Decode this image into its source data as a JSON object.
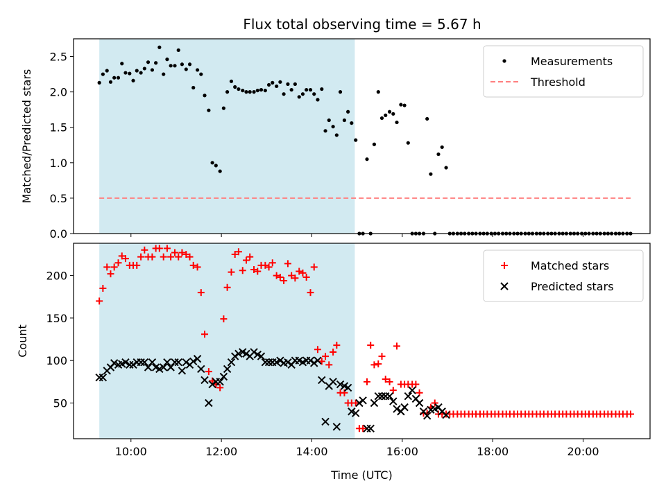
{
  "figure": {
    "title": "Flux total observing time = 5.67 h"
  },
  "colors": {
    "measurements": "#000000",
    "threshold": "#ff7f7f",
    "matched": "#ff0000",
    "predicted": "#000000",
    "observing_window": "#add8e6"
  },
  "chart_data": [
    {
      "type": "scatter",
      "panel": "top",
      "xlabel": "",
      "ylabel": "Matched/Predicted stars",
      "xlim": [
        8.73,
        21.48
      ],
      "ylim": [
        0,
        2.75
      ],
      "yticks": [
        0.0,
        0.5,
        1.0,
        1.5,
        2.0,
        2.5
      ],
      "ytick_labels": [
        "0.0",
        "0.5",
        "1.0",
        "1.5",
        "2.0",
        "2.5"
      ],
      "xticks": [
        10,
        12,
        14,
        16,
        18,
        20
      ],
      "shaded_span": [
        9.3,
        14.95
      ],
      "legend_position": "upper right",
      "threshold": {
        "name": "Threshold",
        "value": 0.5,
        "x": [
          9.3,
          21.05
        ]
      },
      "series": [
        {
          "name": "Measurements",
          "x": [
            9.3,
            9.38,
            9.47,
            9.55,
            9.63,
            9.72,
            9.8,
            9.88,
            9.97,
            10.05,
            10.13,
            10.22,
            10.3,
            10.38,
            10.47,
            10.55,
            10.63,
            10.72,
            10.8,
            10.88,
            10.97,
            11.05,
            11.13,
            11.22,
            11.3,
            11.38,
            11.47,
            11.55,
            11.63,
            11.72,
            11.8,
            11.88,
            11.97,
            12.05,
            12.13,
            12.22,
            12.3,
            12.38,
            12.47,
            12.55,
            12.63,
            12.72,
            12.8,
            12.88,
            12.97,
            13.05,
            13.13,
            13.22,
            13.3,
            13.38,
            13.47,
            13.55,
            13.63,
            13.72,
            13.8,
            13.88,
            13.97,
            14.05,
            14.13,
            14.22,
            14.3,
            14.38,
            14.47,
            14.55,
            14.63,
            14.72,
            14.8,
            14.88,
            14.97,
            15.05,
            15.13,
            15.22,
            15.3,
            15.38,
            15.47,
            15.55,
            15.63,
            15.72,
            15.8,
            15.88,
            15.97,
            16.05,
            16.13,
            16.22,
            16.3,
            16.38,
            16.47,
            16.55,
            16.63,
            16.72,
            16.8,
            16.88,
            16.97,
            17.05,
            17.13,
            17.22,
            17.3,
            17.38,
            17.47,
            17.55,
            17.63,
            17.72,
            17.8,
            17.88,
            17.97,
            18.05,
            18.13,
            18.22,
            18.3,
            18.38,
            18.47,
            18.55,
            18.63,
            18.72,
            18.8,
            18.88,
            18.97,
            19.05,
            19.13,
            19.22,
            19.3,
            19.38,
            19.47,
            19.55,
            19.63,
            19.72,
            19.8,
            19.88,
            19.97,
            20.05,
            20.13,
            20.22,
            20.3,
            20.38,
            20.47,
            20.55,
            20.63,
            20.72,
            20.8,
            20.88,
            20.97,
            21.05
          ],
          "y": [
            2.13,
            2.25,
            2.3,
            2.14,
            2.2,
            2.2,
            2.4,
            2.27,
            2.26,
            2.16,
            2.3,
            2.27,
            2.33,
            2.42,
            2.31,
            2.41,
            2.63,
            2.25,
            2.46,
            2.37,
            2.37,
            2.59,
            2.39,
            2.32,
            2.39,
            2.06,
            2.31,
            2.25,
            1.95,
            1.74,
            1.0,
            0.96,
            0.88,
            1.77,
            2.0,
            2.15,
            2.07,
            2.04,
            2.02,
            2.0,
            2.0,
            2.0,
            2.02,
            2.03,
            2.02,
            2.1,
            2.13,
            2.08,
            2.14,
            1.97,
            2.11,
            2.03,
            2.11,
            1.93,
            1.97,
            2.03,
            2.03,
            1.97,
            1.89,
            2.04,
            1.45,
            1.6,
            1.51,
            1.39,
            2.0,
            1.6,
            1.72,
            1.56,
            1.32,
            0.0,
            0.0,
            1.05,
            0.0,
            1.26,
            2.0,
            1.63,
            1.67,
            1.72,
            1.69,
            1.57,
            1.82,
            1.81,
            1.28,
            0.0,
            0.0,
            0.0,
            0.0,
            1.62,
            0.84,
            0.0,
            1.12,
            1.22,
            0.93,
            0.0,
            0.0,
            0.0,
            0.0,
            0.0,
            0.0,
            0.0,
            0.0,
            0.0,
            0.0,
            0.0,
            0.0,
            0.0,
            0.0,
            0.0,
            0.0,
            0.0,
            0.0,
            0.0,
            0.0,
            0.0,
            0.0,
            0.0,
            0.0,
            0.0,
            0.0,
            0.0,
            0.0,
            0.0,
            0.0,
            0.0,
            0.0,
            0.0,
            0.0,
            0.0,
            0.0,
            0.0,
            0.0,
            0.0,
            0.0,
            0.0,
            0.0,
            0.0,
            0.0,
            0.0,
            0.0,
            0.0,
            0.0,
            0.0
          ]
        }
      ]
    },
    {
      "type": "scatter",
      "panel": "bottom",
      "xlabel": "Time (UTC)",
      "ylabel": "Count",
      "xlim": [
        8.73,
        21.48
      ],
      "ylim": [
        8,
        238
      ],
      "yticks": [
        50,
        100,
        150,
        200
      ],
      "ytick_labels": [
        "50",
        "100",
        "150",
        "200"
      ],
      "xticks": [
        10,
        12,
        14,
        16,
        18,
        20
      ],
      "xtick_labels": [
        "10:00",
        "12:00",
        "14:00",
        "16:00",
        "18:00",
        "20:00"
      ],
      "shaded_span": [
        9.3,
        14.95
      ],
      "legend_position": "upper right",
      "series": [
        {
          "name": "Matched stars",
          "marker": "plus",
          "x": [
            9.3,
            9.38,
            9.47,
            9.55,
            9.63,
            9.72,
            9.8,
            9.88,
            9.97,
            10.05,
            10.13,
            10.22,
            10.3,
            10.38,
            10.47,
            10.55,
            10.63,
            10.72,
            10.8,
            10.88,
            10.97,
            11.05,
            11.13,
            11.22,
            11.3,
            11.38,
            11.47,
            11.55,
            11.63,
            11.72,
            11.8,
            11.88,
            11.97,
            12.05,
            12.13,
            12.22,
            12.3,
            12.38,
            12.47,
            12.55,
            12.63,
            12.72,
            12.8,
            12.88,
            12.97,
            13.05,
            13.13,
            13.22,
            13.3,
            13.38,
            13.47,
            13.55,
            13.63,
            13.72,
            13.8,
            13.88,
            13.97,
            14.05,
            14.13,
            14.22,
            14.3,
            14.38,
            14.47,
            14.55,
            14.63,
            14.72,
            14.8,
            14.88,
            14.97,
            15.05,
            15.13,
            15.22,
            15.3,
            15.38,
            15.47,
            15.55,
            15.63,
            15.72,
            15.8,
            15.88,
            15.97,
            16.05,
            16.13,
            16.22,
            16.3,
            16.38,
            16.47,
            16.55,
            16.63,
            16.72,
            16.8,
            16.88,
            16.97,
            17.05,
            17.13,
            17.22,
            17.3,
            17.38,
            17.47,
            17.55,
            17.63,
            17.72,
            17.8,
            17.88,
            17.97,
            18.05,
            18.13,
            18.22,
            18.3,
            18.38,
            18.47,
            18.55,
            18.63,
            18.72,
            18.8,
            18.88,
            18.97,
            19.05,
            19.13,
            19.22,
            19.3,
            19.38,
            19.47,
            19.55,
            19.63,
            19.72,
            19.8,
            19.88,
            19.97,
            20.05,
            20.13,
            20.22,
            20.3,
            20.38,
            20.47,
            20.55,
            20.63,
            20.72,
            20.8,
            20.88,
            20.97,
            21.05
          ],
          "y": [
            170,
            185,
            210,
            202,
            210,
            215,
            223,
            220,
            212,
            212,
            212,
            222,
            230,
            222,
            222,
            232,
            232,
            222,
            232,
            222,
            227,
            222,
            227,
            225,
            222,
            212,
            210,
            180,
            131,
            87,
            76,
            72,
            68,
            149,
            186,
            204,
            225,
            228,
            206,
            218,
            222,
            207,
            205,
            212,
            212,
            210,
            215,
            200,
            198,
            194,
            214,
            200,
            197,
            205,
            203,
            198,
            180,
            210,
            113,
            99,
            105,
            95,
            110,
            118,
            62,
            62,
            50,
            50,
            50,
            20,
            20,
            75,
            118,
            95,
            96,
            105,
            78,
            75,
            65,
            117,
            72,
            72,
            72,
            72,
            72,
            62,
            38,
            38,
            45,
            50,
            37,
            37,
            37,
            37,
            37,
            37,
            37,
            37,
            37,
            37,
            37,
            37,
            37,
            37,
            37,
            37,
            37,
            37,
            37,
            37,
            37,
            37,
            37,
            37,
            37,
            37,
            37,
            37,
            37,
            37,
            37,
            37,
            37,
            37,
            37,
            37,
            37,
            37,
            37,
            37,
            37,
            37,
            37,
            37,
            37,
            37,
            37,
            37,
            37,
            37,
            37,
            37
          ]
        },
        {
          "name": "Predicted stars",
          "marker": "x",
          "x": [
            9.3,
            9.38,
            9.47,
            9.55,
            9.63,
            9.72,
            9.8,
            9.88,
            9.97,
            10.05,
            10.13,
            10.22,
            10.3,
            10.38,
            10.47,
            10.55,
            10.63,
            10.72,
            10.8,
            10.88,
            10.97,
            11.05,
            11.13,
            11.22,
            11.3,
            11.38,
            11.47,
            11.55,
            11.63,
            11.72,
            11.8,
            11.88,
            11.97,
            12.05,
            12.13,
            12.22,
            12.3,
            12.38,
            12.47,
            12.55,
            12.63,
            12.72,
            12.8,
            12.88,
            12.97,
            13.05,
            13.13,
            13.22,
            13.3,
            13.38,
            13.47,
            13.55,
            13.63,
            13.72,
            13.8,
            13.88,
            13.97,
            14.05,
            14.13,
            14.22,
            14.3,
            14.38,
            14.47,
            14.55,
            14.63,
            14.72,
            14.8,
            14.88,
            14.97,
            15.05,
            15.13,
            15.22,
            15.3,
            15.38,
            15.47,
            15.55,
            15.63,
            15.72,
            15.8,
            15.88,
            15.97,
            16.05,
            16.13,
            16.22,
            16.3,
            16.38,
            16.47,
            16.55,
            16.63,
            16.72,
            16.8,
            16.88,
            16.97
          ],
          "y": [
            80,
            80,
            88,
            92,
            97,
            95,
            96,
            98,
            95,
            95,
            98,
            98,
            98,
            92,
            98,
            92,
            90,
            92,
            98,
            92,
            98,
            98,
            88,
            98,
            95,
            99,
            102,
            90,
            77,
            50,
            72,
            75,
            75,
            81,
            90,
            98,
            105,
            108,
            110,
            108,
            105,
            110,
            107,
            105,
            98,
            98,
            98,
            98,
            100,
            97,
            98,
            95,
            100,
            100,
            98,
            100,
            100,
            97,
            100,
            77,
            28,
            70,
            75,
            22,
            72,
            70,
            68,
            40,
            38,
            50,
            53,
            20,
            20,
            50,
            58,
            58,
            58,
            58,
            52,
            43,
            40,
            45,
            58,
            65,
            55,
            50,
            40,
            35,
            42,
            43,
            45,
            40,
            36
          ]
        }
      ]
    }
  ]
}
